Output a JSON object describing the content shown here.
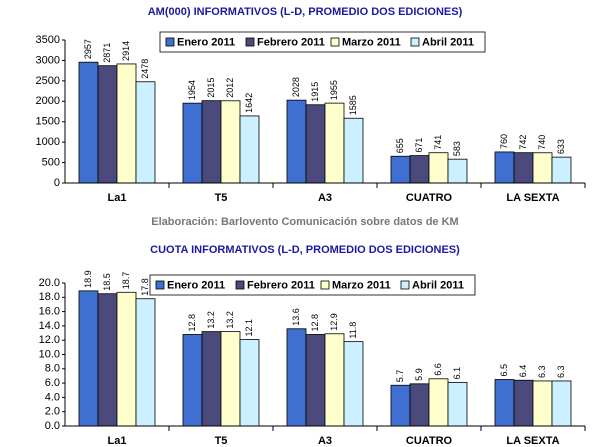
{
  "chart_data": [
    {
      "type": "bar",
      "title": "AM(000) INFORMATIVOS (L-D, PROMEDIO DOS EDICIONES)",
      "categories": [
        "La1",
        "T5",
        "A3",
        "CUATRO",
        "LA SEXTA"
      ],
      "series": [
        {
          "name": "Enero 2011",
          "color": "#3f6fd0",
          "values": [
            2957,
            1954,
            2028,
            655,
            760
          ]
        },
        {
          "name": "Febrero 2011",
          "color": "#4a4a7c",
          "values": [
            2871,
            2015,
            1915,
            671,
            742
          ]
        },
        {
          "name": "Marzo 2011",
          "color": "#ffffcc",
          "values": [
            2914,
            2012,
            1955,
            741,
            740
          ]
        },
        {
          "name": "Abril 2011",
          "color": "#ccf0ff",
          "values": [
            2478,
            1642,
            1585,
            583,
            633
          ]
        }
      ],
      "ylim": [
        0,
        3500
      ],
      "yticks": [
        0,
        500,
        1000,
        1500,
        2000,
        2500,
        3000,
        3500
      ],
      "grid": false
    },
    {
      "type": "bar",
      "title": "CUOTA INFORMATIVOS (L-D, PROMEDIO DOS EDICIONES)",
      "categories": [
        "La1",
        "T5",
        "A3",
        "CUATRO",
        "LA SEXTA"
      ],
      "series": [
        {
          "name": "Enero 2011",
          "color": "#3f6fd0",
          "values": [
            18.9,
            12.8,
            13.6,
            5.7,
            6.5
          ]
        },
        {
          "name": "Febrero 2011",
          "color": "#4a4a7c",
          "values": [
            18.5,
            13.2,
            12.8,
            5.9,
            6.4
          ]
        },
        {
          "name": "Marzo 2011",
          "color": "#ffffcc",
          "values": [
            18.7,
            13.2,
            12.9,
            6.6,
            6.3
          ]
        },
        {
          "name": "Abril 2011",
          "color": "#ccf0ff",
          "values": [
            17.8,
            12.1,
            11.8,
            6.1,
            6.3
          ]
        }
      ],
      "ylim": [
        0,
        20
      ],
      "yticks": [
        {
          "value": 0,
          "label": "0.0"
        },
        {
          "value": 2,
          "label": "2.0"
        },
        {
          "value": 4,
          "label": "4.0"
        },
        {
          "value": 6,
          "label": "6.0"
        },
        {
          "value": 8,
          "label": "8.0"
        },
        {
          "value": 10,
          "label": "10.0"
        },
        {
          "value": 12,
          "label": "12.0"
        },
        {
          "value": 14,
          "label": "14.0"
        },
        {
          "value": 16,
          "label": "16.0"
        },
        {
          "value": 18,
          "label": "18.0"
        },
        {
          "value": 20,
          "label": "20.0"
        }
      ],
      "grid": false
    }
  ],
  "note": "Elaboración: Barlovento Comunicación sobre datos de KM"
}
